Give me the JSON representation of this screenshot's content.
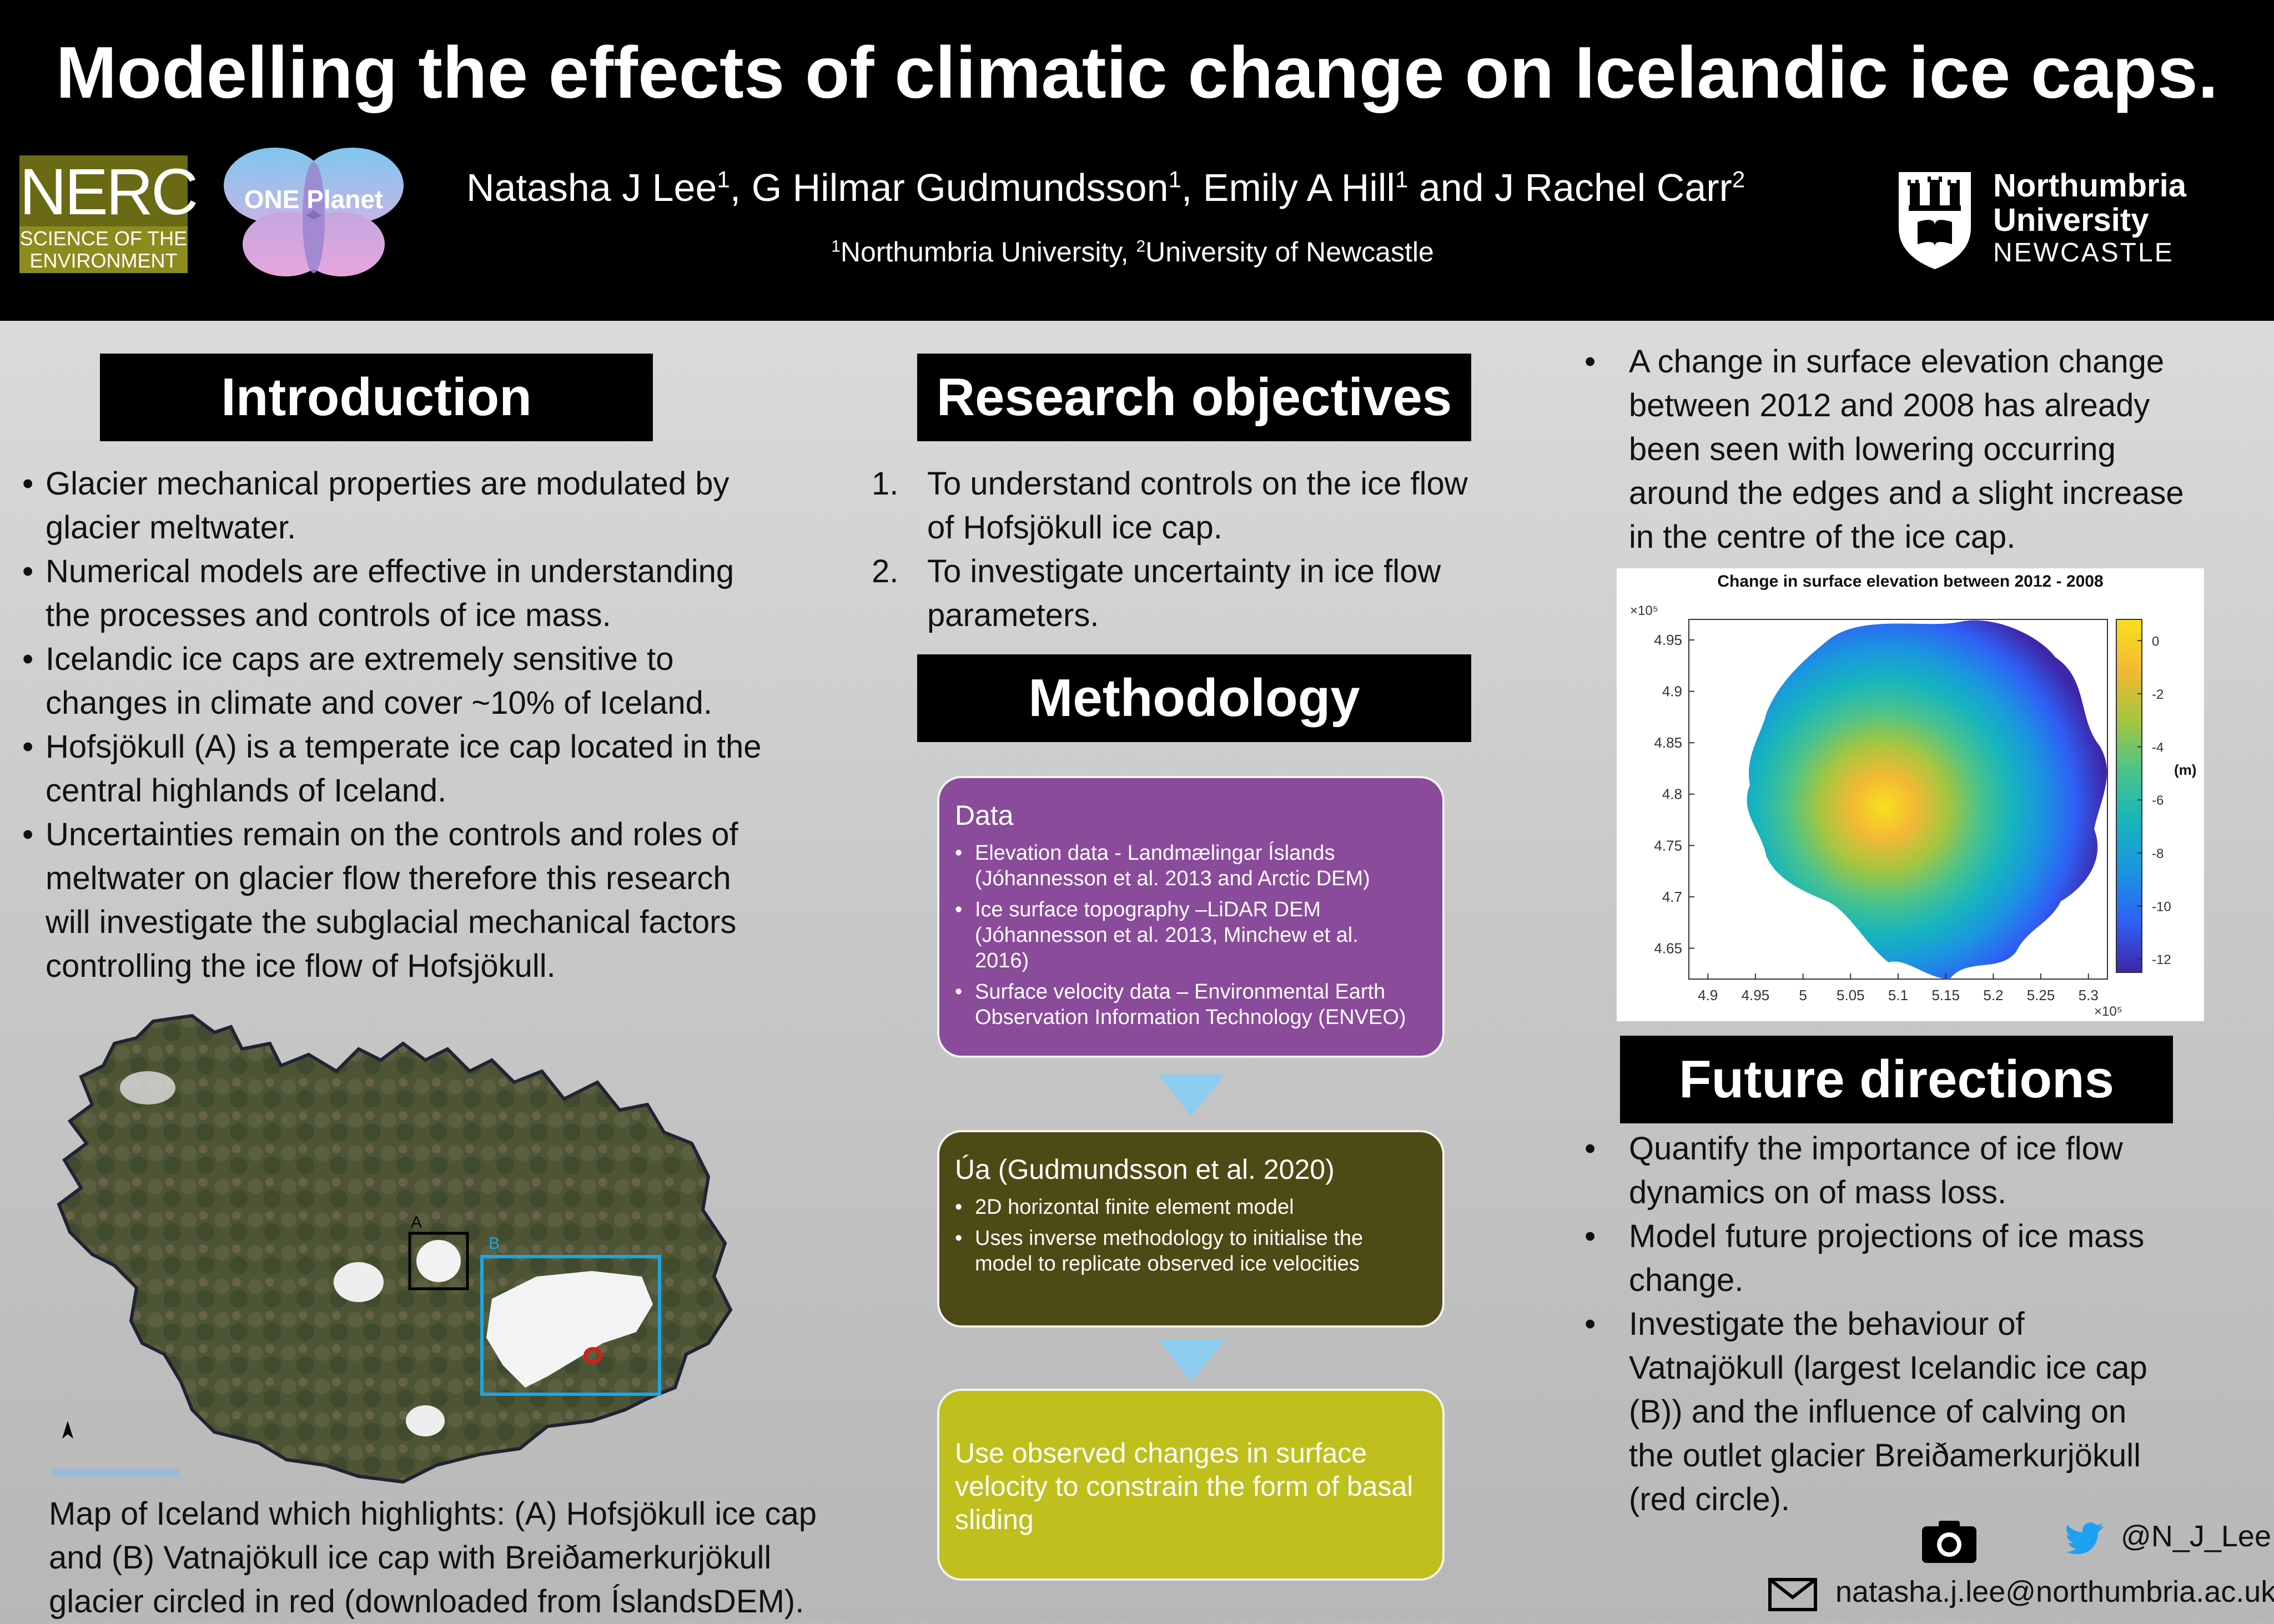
{
  "poster": {
    "title": "Modelling the effects of climatic change on Icelandic ice caps.",
    "authors": [
      {
        "name": "Natasha J Lee",
        "aff": "1",
        "sep": ", "
      },
      {
        "name": "G Hilmar Gudmundsson",
        "aff": "1",
        "sep": ", "
      },
      {
        "name": "Emily A Hill",
        "aff": "1",
        "sep": " and "
      },
      {
        "name": "J Rachel Carr",
        "aff": "2",
        "sep": ""
      }
    ],
    "affiliations": [
      {
        "num": "1",
        "name": "Northumbria University",
        "sep": ", "
      },
      {
        "num": "2",
        "name": "University of Newcastle",
        "sep": ""
      }
    ]
  },
  "logos": {
    "nerc_big": "NERC",
    "nerc_line1": "SCIENCE OF THE",
    "nerc_line2": "ENVIRONMENT",
    "one_planet": "ONE Planet",
    "uni_line1": "Northumbria",
    "uni_line2": "University",
    "uni_line3": "NEWCASTLE"
  },
  "introduction": {
    "heading": "Introduction",
    "bullets": [
      [
        "Glacier mechanical properties are modulated by",
        "glacier meltwater."
      ],
      [
        "Numerical models are effective in understanding",
        "the processes and controls of ice mass."
      ],
      [
        "Icelandic ice caps are extremely sensitive to",
        "changes in climate and cover ~10% of Iceland."
      ],
      [
        "Hofsjökull (A) is a temperate ice cap located in the",
        "central highlands of Iceland."
      ],
      [
        "Uncertainties remain on the controls and roles of",
        "meltwater on glacier flow therefore this research",
        "will investigate the subglacial mechanical factors",
        "controlling the ice flow of Hofsjökull."
      ]
    ],
    "map_label_a": "A",
    "map_label_b": "B",
    "caption": [
      "Map of Iceland which highlights: (A) Hofsjökull ice cap",
      "and (B) Vatnajökull ice cap with Breiðamerkurjökull",
      "glacier circled in red (downloaded from ÍslandsDEM)."
    ]
  },
  "objectives": {
    "heading": "Research objectives",
    "items": [
      {
        "num": "1.",
        "lines": [
          "To understand controls on the ice flow",
          "of Hofsjökull ice cap."
        ]
      },
      {
        "num": "2.",
        "lines": [
          "To investigate uncertainty in ice flow",
          "parameters."
        ]
      }
    ]
  },
  "methodology": {
    "heading": "Methodology",
    "data_box": {
      "title": "Data",
      "items": [
        [
          "Elevation data - Landmælingar Íslands",
          "(Jóhannesson et al. 2013 and Arctic DEM)"
        ],
        [
          "Ice surface topography –LiDAR DEM",
          "(Jóhannesson et al. 2013, Minchew et al.",
          "2016)"
        ],
        [
          "Surface velocity data – Environmental Earth",
          "Observation Information Technology (ENVEO)"
        ]
      ]
    },
    "model_box": {
      "title": "Úa (Gudmundsson et al. 2020)",
      "items": [
        [
          "2D horizontal finite element model"
        ],
        [
          "Uses inverse methodology to initialise the",
          "model to replicate observed ice velocities"
        ]
      ]
    },
    "final_box": {
      "lines": [
        "Use observed changes in surface",
        "velocity to constrain the form of basal",
        "sliding"
      ]
    },
    "colors": {
      "data": "#8a4b9a",
      "model": "#4d4a15",
      "final": "#bfbf1e",
      "arrow": "#8ecdf0"
    }
  },
  "results": {
    "bullet": [
      "A change in surface elevation change",
      "between 2012 and 2008 has already",
      "been seen with lowering occurring",
      "around the edges and a slight increase",
      "in the centre of the ice cap."
    ]
  },
  "chart_data": {
    "type": "heatmap",
    "title": "Change in surface elevation between 2012 - 2008",
    "xlabel": "",
    "ylabel": "",
    "x_exponent": "×10⁵",
    "y_exponent": "×10⁵",
    "x_ticks": [
      "4.9",
      "4.95",
      "5",
      "5.05",
      "5.1",
      "5.15",
      "5.2",
      "5.25",
      "5.3"
    ],
    "y_ticks": [
      "4.95",
      "4.9",
      "4.85",
      "4.8",
      "4.75",
      "4.7",
      "4.65"
    ],
    "xlim": [
      4.88,
      5.32
    ],
    "ylim": [
      4.62,
      4.97
    ],
    "colorbar": {
      "ticks": [
        "0",
        "-2",
        "-4",
        "-6",
        "-8",
        "-10",
        "-12"
      ],
      "min": -12.5,
      "max": 0.8,
      "unit": "(m)"
    },
    "colormap": [
      "#3e26a8",
      "#2f60f5",
      "#1a95e0",
      "#17b5bc",
      "#4cc38a",
      "#a5c63f",
      "#f3b935",
      "#f9e01c"
    ]
  },
  "future": {
    "heading": "Future directions",
    "bullets": [
      [
        "Quantify the importance of ice flow",
        "dynamics on of mass loss."
      ],
      [
        "Model future projections of ice mass",
        "change."
      ],
      [
        "Investigate the behaviour of",
        "Vatnajökull (largest Icelandic ice cap",
        "(B)) and the influence of calving on",
        "the outlet glacier Breiðamerkurjökull",
        "(red circle)."
      ]
    ]
  },
  "contact": {
    "handle": "@N_J_Lee",
    "email": "natasha.j.lee@northumbria.ac.uk"
  }
}
